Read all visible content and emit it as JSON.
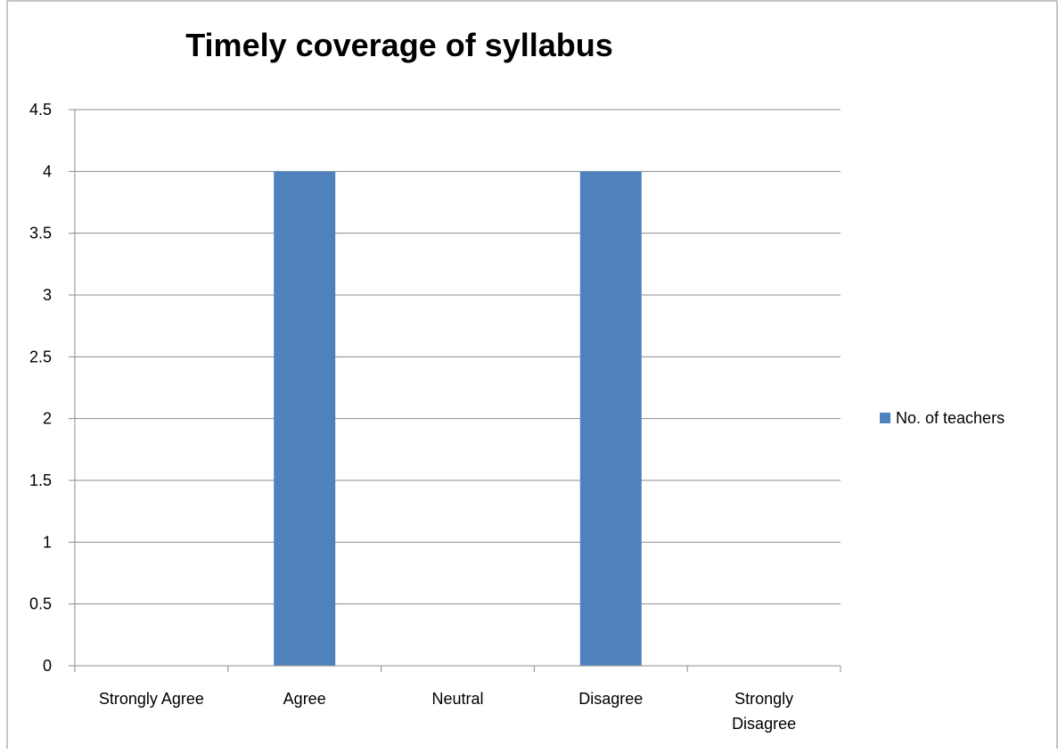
{
  "chart_data": {
    "type": "bar",
    "title": "Timely coverage of syllabus",
    "categories": [
      "Strongly Agree",
      "Agree",
      "Neutral",
      "Disagree",
      "Strongly Disagree"
    ],
    "category_label_lines": [
      [
        "Strongly Agree"
      ],
      [
        "Agree"
      ],
      [
        "Neutral"
      ],
      [
        "Disagree"
      ],
      [
        "Strongly",
        "Disagree"
      ]
    ],
    "series": [
      {
        "name": "No. of teachers",
        "values": [
          0,
          4,
          0,
          4,
          0
        ],
        "color": "#4F81BD"
      }
    ],
    "y_ticks": [
      "0",
      "0.5",
      "1",
      "1.5",
      "2",
      "2.5",
      "3",
      "3.5",
      "4",
      "4.5"
    ],
    "ylim": [
      0,
      4.5
    ],
    "ystep": 0.5,
    "grid": true,
    "legend_position": "right",
    "xlabel": "",
    "ylabel": ""
  }
}
